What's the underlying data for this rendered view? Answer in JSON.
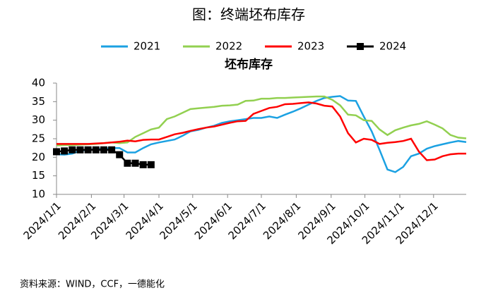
{
  "chart_data": {
    "type": "line",
    "title": "图：终端坯布库存",
    "subtitle": "坯布库存",
    "source": "资料来源：WIND，CCF，一德能化",
    "x": [
      "2024/1/1",
      "2024/1/8",
      "2024/1/15",
      "2024/1/22",
      "2024/1/29",
      "2024/2/5",
      "2024/2/12",
      "2024/2/19",
      "2024/2/26",
      "2024/3/4",
      "2024/3/11",
      "2024/3/18",
      "2024/3/25",
      "2024/4/1",
      "2024/4/8",
      "2024/4/15",
      "2024/4/22",
      "2024/4/29",
      "2024/5/6",
      "2024/5/13",
      "2024/5/20",
      "2024/5/27",
      "2024/6/3",
      "2024/6/10",
      "2024/6/17",
      "2024/6/24",
      "2024/7/1",
      "2024/7/8",
      "2024/7/15",
      "2024/7/22",
      "2024/7/29",
      "2024/8/5",
      "2024/8/12",
      "2024/8/19",
      "2024/8/26",
      "2024/9/2",
      "2024/9/9",
      "2024/9/16",
      "2024/9/23",
      "2024/9/30",
      "2024/10/7",
      "2024/10/14",
      "2024/10/21",
      "2024/10/28",
      "2024/11/4",
      "2024/11/11",
      "2024/11/18",
      "2024/11/25",
      "2024/12/2",
      "2024/12/9",
      "2024/12/16",
      "2024/12/23",
      "2024/12/30"
    ],
    "series": [
      {
        "name": "2021",
        "color": "#1ba1e2",
        "values": [
          20.8,
          20.7,
          21,
          21.8,
          22,
          22.2,
          22.3,
          22.5,
          22.5,
          21.3,
          21.3,
          22.5,
          23.5,
          24,
          24.4,
          24.8,
          25.8,
          27,
          27.4,
          28,
          28.5,
          29.3,
          29.7,
          30,
          30.3,
          30.6,
          30.6,
          31,
          30.6,
          31.5,
          32.3,
          33.2,
          34.2,
          35.2,
          36,
          36.3,
          36.5,
          35.3,
          35.2,
          31,
          27,
          22,
          16.7,
          16,
          17.4,
          20.3,
          21,
          22.3,
          23,
          23.5,
          24,
          24.4,
          24.1
        ]
      },
      {
        "name": "2022",
        "color": "#92d050",
        "values": [
          23.2,
          23.3,
          23.3,
          23.4,
          23.5,
          23.6,
          23.8,
          24,
          23.8,
          24,
          25.5,
          26.5,
          27.5,
          28,
          30.3,
          31,
          32,
          33,
          33.2,
          33.4,
          33.6,
          33.9,
          34,
          34.2,
          35.2,
          35.3,
          35.8,
          35.8,
          36,
          36,
          36.1,
          36.2,
          36.3,
          36.4,
          36.4,
          35.5,
          34,
          31.5,
          31.3,
          30,
          29.8,
          27.5,
          26,
          27.3,
          28,
          28.6,
          29,
          29.7,
          28.8,
          27.8,
          26,
          25.3,
          25.1
        ]
      },
      {
        "name": "2023",
        "color": "#ff0000",
        "values": [
          23.6,
          23.6,
          23.6,
          23.6,
          23.6,
          23.7,
          23.8,
          24,
          24.2,
          24.5,
          24.3,
          24.7,
          24.8,
          24.8,
          25.5,
          26.2,
          26.6,
          27.1,
          27.6,
          28,
          28.3,
          28.8,
          29.3,
          29.7,
          29.8,
          31.7,
          32.5,
          33.3,
          33.6,
          34.3,
          34.4,
          34.6,
          34.8,
          34.5,
          33.9,
          33.7,
          31,
          26.5,
          24,
          25,
          24.7,
          23.6,
          23.9,
          24.1,
          24.4,
          25,
          21.5,
          19.2,
          19.4,
          20.3,
          20.8,
          21,
          21
        ]
      },
      {
        "name": "2024",
        "color": "#000000",
        "marker": "square",
        "values": [
          21.5,
          21.7,
          22,
          22,
          22,
          22,
          22,
          22,
          20.7,
          18.4,
          18.4,
          18,
          18,
          null,
          null,
          null,
          null,
          null,
          null,
          null,
          null,
          null,
          null,
          null,
          null,
          null,
          null,
          null,
          null,
          null,
          null,
          null,
          null,
          null,
          null,
          null,
          null,
          null,
          null,
          null,
          null,
          null,
          null,
          null,
          null,
          null,
          null,
          null,
          null,
          null,
          null,
          null,
          null
        ]
      }
    ],
    "xlim": [
      "2024/1/1",
      "2024/12/30"
    ],
    "xticks": [
      "2024/1/1",
      "2024/2/1",
      "2024/3/1",
      "2024/4/1",
      "2024/5/1",
      "2024/6/1",
      "2024/7/1",
      "2024/8/1",
      "2024/9/1",
      "2024/10/1",
      "2024/11/1",
      "2024/12/1"
    ],
    "ylim": [
      10,
      40
    ],
    "yticks": [
      10,
      15,
      20,
      25,
      30,
      35,
      40
    ],
    "grid": false,
    "legend": "top"
  }
}
